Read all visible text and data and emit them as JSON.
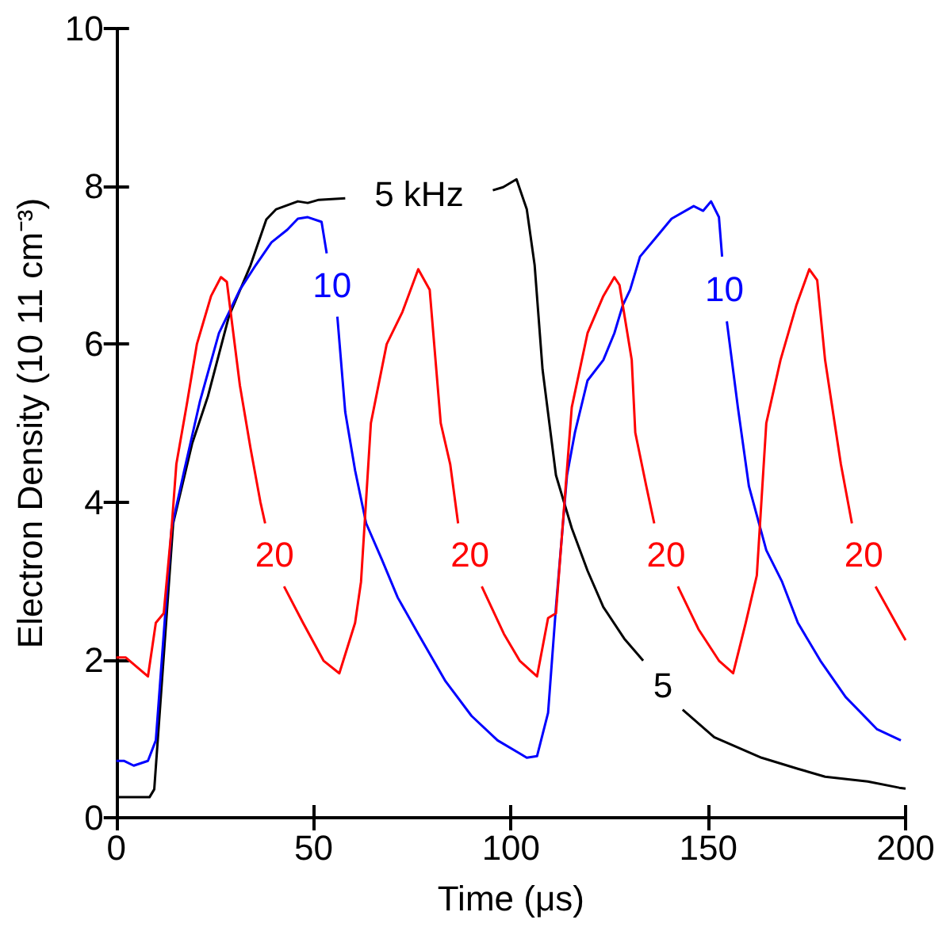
{
  "chart_data": {
    "type": "line",
    "xlabel": "Time (μs)",
    "ylabel": "Electron Density (10 11 cm⁻³)",
    "xlim": [
      0,
      200
    ],
    "xticks": [
      0,
      50,
      100,
      150,
      200
    ],
    "ylim": [
      0,
      10
    ],
    "yticks": [
      0,
      2,
      4,
      6,
      8,
      10
    ],
    "grid": false,
    "series": [
      {
        "color": "#000000",
        "x": [
          0,
          3.2,
          8.4,
          9.6,
          14.4,
          19.2,
          23.2,
          28.5,
          34,
          38,
          40.5,
          46,
          48.5,
          51.3,
          58,
          70,
          95.4,
          98,
          101.4,
          104,
          106,
          108,
          111.4,
          115.4,
          119.4,
          123.4,
          128.7,
          133.5,
          138,
          143.5,
          151.5,
          163.5,
          172.7,
          179.6,
          190.4,
          198.4,
          200
        ],
        "values": [
          0.26,
          0.26,
          0.26,
          0.36,
          3.73,
          4.74,
          5.34,
          6.35,
          7.0,
          7.58,
          7.71,
          7.81,
          7.79,
          7.83,
          7.85,
          null,
          7.95,
          7.99,
          8.09,
          7.71,
          7.0,
          5.68,
          4.34,
          3.67,
          3.13,
          2.67,
          2.27,
          1.99,
          null,
          1.37,
          1.02,
          0.76,
          0.62,
          0.52,
          0.46,
          0.38,
          0.37
        ]
      },
      {
        "color": "#0000ff",
        "x": [
          0,
          2,
          4.4,
          8,
          10,
          14,
          17.2,
          21.2,
          26,
          31.3,
          35.3,
          39.3,
          43.3,
          46,
          48.5,
          52,
          53.3,
          54.7,
          56,
          58,
          60.5,
          63.3,
          67.3,
          71.3,
          76.5,
          83.4,
          90,
          96.6,
          102,
          104,
          106.6,
          109.4,
          111.4,
          114.2,
          116.2,
          119.4,
          123.4,
          126.2,
          128.3,
          130.2,
          132.7,
          136.7,
          140.7,
          146.3,
          148.7,
          150.7,
          152.7,
          153.5,
          154,
          154.7,
          157.5,
          160.3,
          164.7,
          168.7,
          172.7,
          178.4,
          184.8,
          192.8,
          198.8
        ],
        "values": [
          0.72,
          0.72,
          0.66,
          0.72,
          0.98,
          3.67,
          4.4,
          5.28,
          6.14,
          6.69,
          7.0,
          7.29,
          7.45,
          7.59,
          7.61,
          7.55,
          7.15,
          null,
          6.35,
          5.14,
          4.4,
          3.73,
          3.27,
          2.79,
          2.33,
          1.73,
          1.29,
          0.98,
          0.82,
          0.76,
          0.78,
          1.33,
          2.67,
          4.34,
          4.88,
          5.54,
          5.8,
          6.14,
          6.49,
          6.69,
          7.11,
          7.35,
          7.59,
          7.75,
          7.69,
          7.81,
          7.61,
          7.11,
          null,
          6.29,
          5.2,
          4.2,
          3.39,
          2.99,
          2.47,
          1.99,
          1.53,
          1.12,
          0.98
        ]
      },
      {
        "color": "#ff0000",
        "x": [
          0,
          2.4,
          8,
          10,
          12,
          14,
          15.2,
          18,
          20.4,
          24,
          26.5,
          28,
          31.3,
          34,
          36.5,
          37.7,
          40,
          42.5,
          47.3,
          52.5,
          56.5,
          60.5,
          62,
          64.5,
          68.5,
          72.5,
          76.5,
          79.4,
          82.2,
          84.6,
          86.6,
          90,
          92.6,
          98.2,
          102.2,
          106.6,
          109.4,
          111.4,
          115.4,
          119.4,
          123.4,
          126.2,
          127.5,
          130.6,
          131.5,
          134.3,
          136.3,
          139.5,
          142.3,
          147.5,
          152.7,
          156.3,
          159.5,
          162.3,
          164.7,
          168.3,
          172.3,
          175.6,
          177.6,
          179.6,
          183.6,
          186.4,
          189.5,
          192.4,
          198.4,
          200
        ],
        "values": [
          2.03,
          2.03,
          1.79,
          2.47,
          2.59,
          3.67,
          4.48,
          5.28,
          6.0,
          6.61,
          6.85,
          6.79,
          5.48,
          4.68,
          4.0,
          3.73,
          null,
          2.93,
          2.47,
          1.99,
          1.83,
          2.47,
          2.99,
          5.0,
          6.0,
          6.41,
          6.95,
          6.69,
          5.0,
          4.48,
          3.73,
          null,
          2.93,
          2.33,
          1.99,
          1.79,
          2.53,
          2.59,
          5.2,
          6.14,
          6.61,
          6.85,
          6.75,
          5.8,
          4.88,
          4.2,
          3.73,
          null,
          2.93,
          2.39,
          1.99,
          1.83,
          2.47,
          3.07,
          5.0,
          5.8,
          6.49,
          6.95,
          6.81,
          5.8,
          4.48,
          3.73,
          null,
          2.93,
          2.39,
          2.25
        ]
      }
    ],
    "annotations": [
      "5 kHz",
      "5",
      "10",
      "10",
      "20",
      "20",
      "20",
      "20"
    ]
  }
}
